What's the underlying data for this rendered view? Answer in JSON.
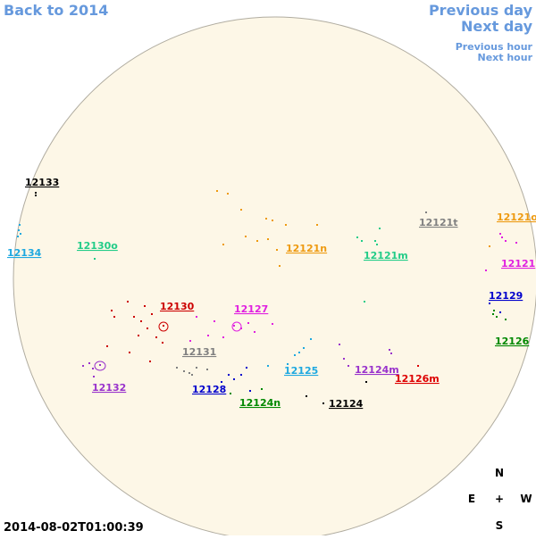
{
  "nav": {
    "back": "Back to 2014",
    "previous_day": "Previous day",
    "next_day": "Next day",
    "previous_hour": "Previous hour",
    "next_hour": "Next hour"
  },
  "timestamp": "2014-08-02T01:00:39",
  "compass": {
    "north": "N",
    "east": "E",
    "center": "+",
    "west": "W",
    "south": "S"
  },
  "regions": [
    {
      "label": "12133",
      "color": "#000000"
    },
    {
      "label": "12134",
      "color": "#1ea8e0"
    },
    {
      "label": "12130o",
      "color": "#22cc88"
    },
    {
      "label": "12121n",
      "color": "#ee9a10"
    },
    {
      "label": "12121m",
      "color": "#22cc88"
    },
    {
      "label": "12121t",
      "color": "#808080"
    },
    {
      "label": "12121o",
      "color": "#ee9a10"
    },
    {
      "label": "12121",
      "color": "#e020e0"
    },
    {
      "label": "12129",
      "color": "#0000cc"
    },
    {
      "label": "12126",
      "color": "#008800"
    },
    {
      "label": "12130",
      "color": "#cc0000"
    },
    {
      "label": "12127",
      "color": "#e020e0"
    },
    {
      "label": "12131",
      "color": "#808080"
    },
    {
      "label": "12132",
      "color": "#9933cc"
    },
    {
      "label": "12128",
      "color": "#0000cc"
    },
    {
      "label": "12125",
      "color": "#1ea8e0"
    },
    {
      "label": "12124m",
      "color": "#9933cc"
    },
    {
      "label": "12126m",
      "color": "#dd0000"
    },
    {
      "label": "12124n",
      "color": "#008800"
    },
    {
      "label": "12124",
      "color": "#000000"
    }
  ]
}
